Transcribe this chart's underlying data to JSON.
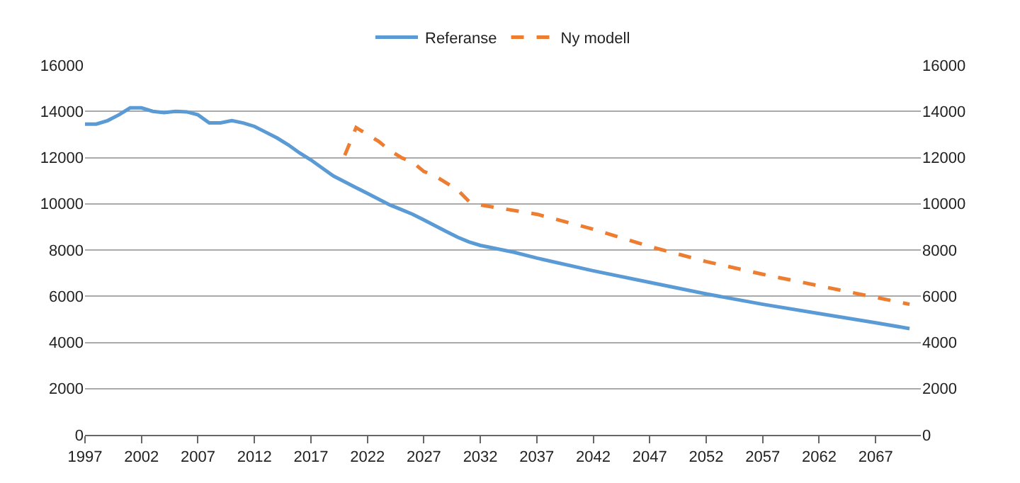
{
  "chart_data": {
    "type": "line",
    "xlim": [
      1997,
      2071
    ],
    "xticks": [
      1997,
      2002,
      2007,
      2012,
      2017,
      2022,
      2027,
      2032,
      2037,
      2042,
      2047,
      2052,
      2057,
      2062,
      2067
    ],
    "ylim": [
      0,
      16000
    ],
    "yticks": [
      0,
      2000,
      4000,
      6000,
      8000,
      10000,
      12000,
      14000,
      16000
    ],
    "y2lim": [
      0,
      16000
    ],
    "y2ticks": [
      0,
      2000,
      4000,
      6000,
      8000,
      10000,
      12000,
      14000,
      16000
    ],
    "grid": "y",
    "legend": "top",
    "series": [
      {
        "name": "Referanse",
        "color": "#5b9bd5",
        "line_style": "solid",
        "x": [
          1997,
          1998,
          1999,
          2000,
          2001,
          2002,
          2003,
          2004,
          2005,
          2006,
          2007,
          2008,
          2009,
          2010,
          2011,
          2012,
          2013,
          2014,
          2015,
          2016,
          2017,
          2018,
          2019,
          2020,
          2021,
          2022,
          2023,
          2024,
          2025,
          2026,
          2027,
          2028,
          2029,
          2030,
          2031,
          2032,
          2033,
          2034,
          2035,
          2037,
          2042,
          2047,
          2052,
          2057,
          2062,
          2067,
          2070
        ],
        "values": [
          13450,
          13450,
          13600,
          13850,
          14150,
          14150,
          14000,
          13950,
          14000,
          13980,
          13850,
          13500,
          13500,
          13600,
          13500,
          13350,
          13100,
          12850,
          12550,
          12200,
          11900,
          11550,
          11200,
          10950,
          10700,
          10450,
          10200,
          9950,
          9750,
          9550,
          9300,
          9050,
          8800,
          8550,
          8350,
          8200,
          8100,
          8000,
          7900,
          7650,
          7100,
          6600,
          6100,
          5650,
          5250,
          4850,
          4600
        ]
      },
      {
        "name": "Ny modell",
        "color": "#ed7d31",
        "line_style": "dashed",
        "x": [
          2020,
          2021,
          2022,
          2023,
          2024,
          2025,
          2026,
          2027,
          2028,
          2029,
          2030,
          2031,
          2032,
          2037,
          2042,
          2047,
          2052,
          2057,
          2062,
          2067,
          2070
        ],
        "values": [
          12100,
          13300,
          13000,
          12700,
          12300,
          12000,
          11800,
          11400,
          11200,
          10900,
          10600,
          10100,
          9950,
          9550,
          8900,
          8150,
          7500,
          6950,
          6450,
          5950,
          5650
        ]
      }
    ]
  }
}
